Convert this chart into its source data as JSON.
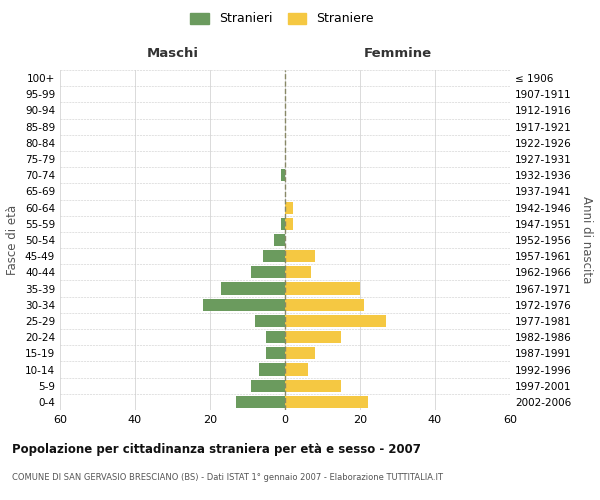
{
  "age_groups": [
    "0-4",
    "5-9",
    "10-14",
    "15-19",
    "20-24",
    "25-29",
    "30-34",
    "35-39",
    "40-44",
    "45-49",
    "50-54",
    "55-59",
    "60-64",
    "65-69",
    "70-74",
    "75-79",
    "80-84",
    "85-89",
    "90-94",
    "95-99",
    "100+"
  ],
  "birth_years": [
    "2002-2006",
    "1997-2001",
    "1992-1996",
    "1987-1991",
    "1982-1986",
    "1977-1981",
    "1972-1976",
    "1967-1971",
    "1962-1966",
    "1957-1961",
    "1952-1956",
    "1947-1951",
    "1942-1946",
    "1937-1941",
    "1932-1936",
    "1927-1931",
    "1922-1926",
    "1917-1921",
    "1912-1916",
    "1907-1911",
    "≤ 1906"
  ],
  "males": [
    13,
    9,
    7,
    5,
    5,
    8,
    22,
    17,
    9,
    6,
    3,
    1,
    0,
    0,
    1,
    0,
    0,
    0,
    0,
    0,
    0
  ],
  "females": [
    22,
    15,
    6,
    8,
    15,
    27,
    21,
    20,
    7,
    8,
    0,
    2,
    2,
    0,
    0,
    0,
    0,
    0,
    0,
    0,
    0
  ],
  "male_color": "#6b9b5e",
  "female_color": "#f5c842",
  "title": "Popolazione per cittadinanza straniera per età e sesso - 2007",
  "subtitle": "COMUNE DI SAN GERVASIO BRESCIANO (BS) - Dati ISTAT 1° gennaio 2007 - Elaborazione TUTTITALIA.IT",
  "xlabel_left": "Maschi",
  "xlabel_right": "Femmine",
  "ylabel_left": "Fasce di età",
  "ylabel_right": "Anni di nascita",
  "legend_male": "Stranieri",
  "legend_female": "Straniere",
  "xlim": 60,
  "background_color": "#ffffff",
  "grid_color": "#cccccc"
}
